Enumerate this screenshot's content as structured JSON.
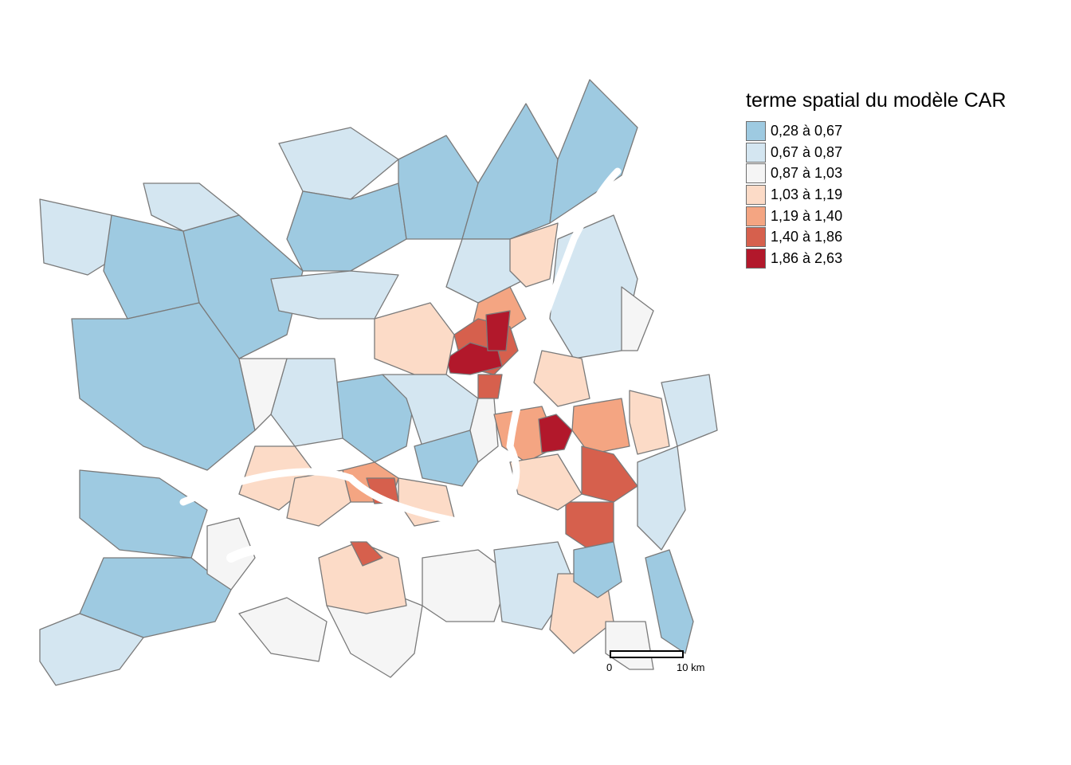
{
  "legend": {
    "title": "terme spatial du modèle CAR",
    "items": [
      {
        "label": "0,28 à 0,67",
        "color": "#9ECAE1"
      },
      {
        "label": "0,67 à 0,87",
        "color": "#D4E6F1"
      },
      {
        "label": "0,87 à 1,03",
        "color": "#F5F5F5"
      },
      {
        "label": "1,03 à 1,19",
        "color": "#FCDBC7"
      },
      {
        "label": "1,19 à 1,40",
        "color": "#F4A582"
      },
      {
        "label": "1,40 à 1,86",
        "color": "#D6604D"
      },
      {
        "label": "1,86 à 2,63",
        "color": "#B2182B"
      }
    ]
  },
  "scalebar": {
    "start_label": "0",
    "end_label": "10 km"
  },
  "colors": {
    "outline": "#7a7a7a",
    "water": "#ffffff"
  }
}
